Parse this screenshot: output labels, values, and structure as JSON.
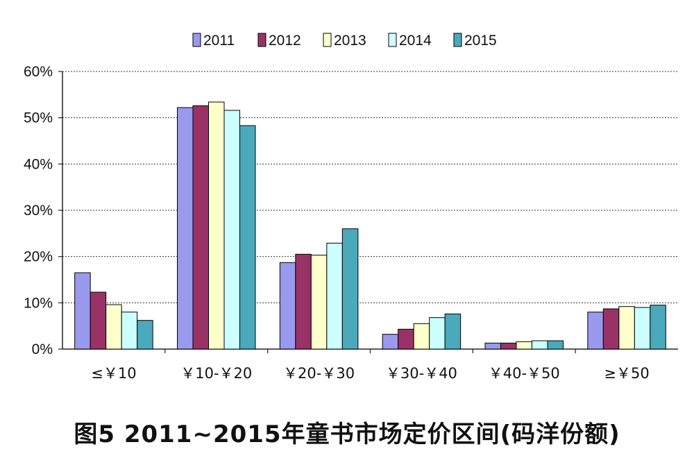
{
  "chart_data": {
    "type": "bar",
    "caption": "图5 2011~2015年童书市场定价区间(码洋份额)",
    "categories": [
      "≤￥10",
      "￥10-￥20",
      "￥20-￥30",
      "￥30-￥40",
      "￥40-￥50",
      "≥￥50"
    ],
    "series": [
      {
        "name": "2011",
        "color": "#9999ee",
        "values": [
          16.5,
          52.2,
          18.7,
          3.2,
          1.3,
          8.0
        ]
      },
      {
        "name": "2012",
        "color": "#993366",
        "values": [
          12.3,
          52.6,
          20.5,
          4.3,
          1.3,
          8.7
        ]
      },
      {
        "name": "2013",
        "color": "#ffffcc",
        "values": [
          9.6,
          53.4,
          20.3,
          5.5,
          1.6,
          9.2
        ]
      },
      {
        "name": "2014",
        "color": "#ccffff",
        "values": [
          8.0,
          51.6,
          22.9,
          6.8,
          1.8,
          9.0
        ]
      },
      {
        "name": "2015",
        "color": "#4aaabb",
        "values": [
          6.2,
          48.3,
          26.0,
          7.6,
          1.8,
          9.5
        ]
      }
    ],
    "yticks": [
      "0%",
      "10%",
      "20%",
      "30%",
      "40%",
      "50%",
      "60%"
    ],
    "ylim": [
      0,
      60
    ],
    "grid": true,
    "legend_position": "top"
  }
}
